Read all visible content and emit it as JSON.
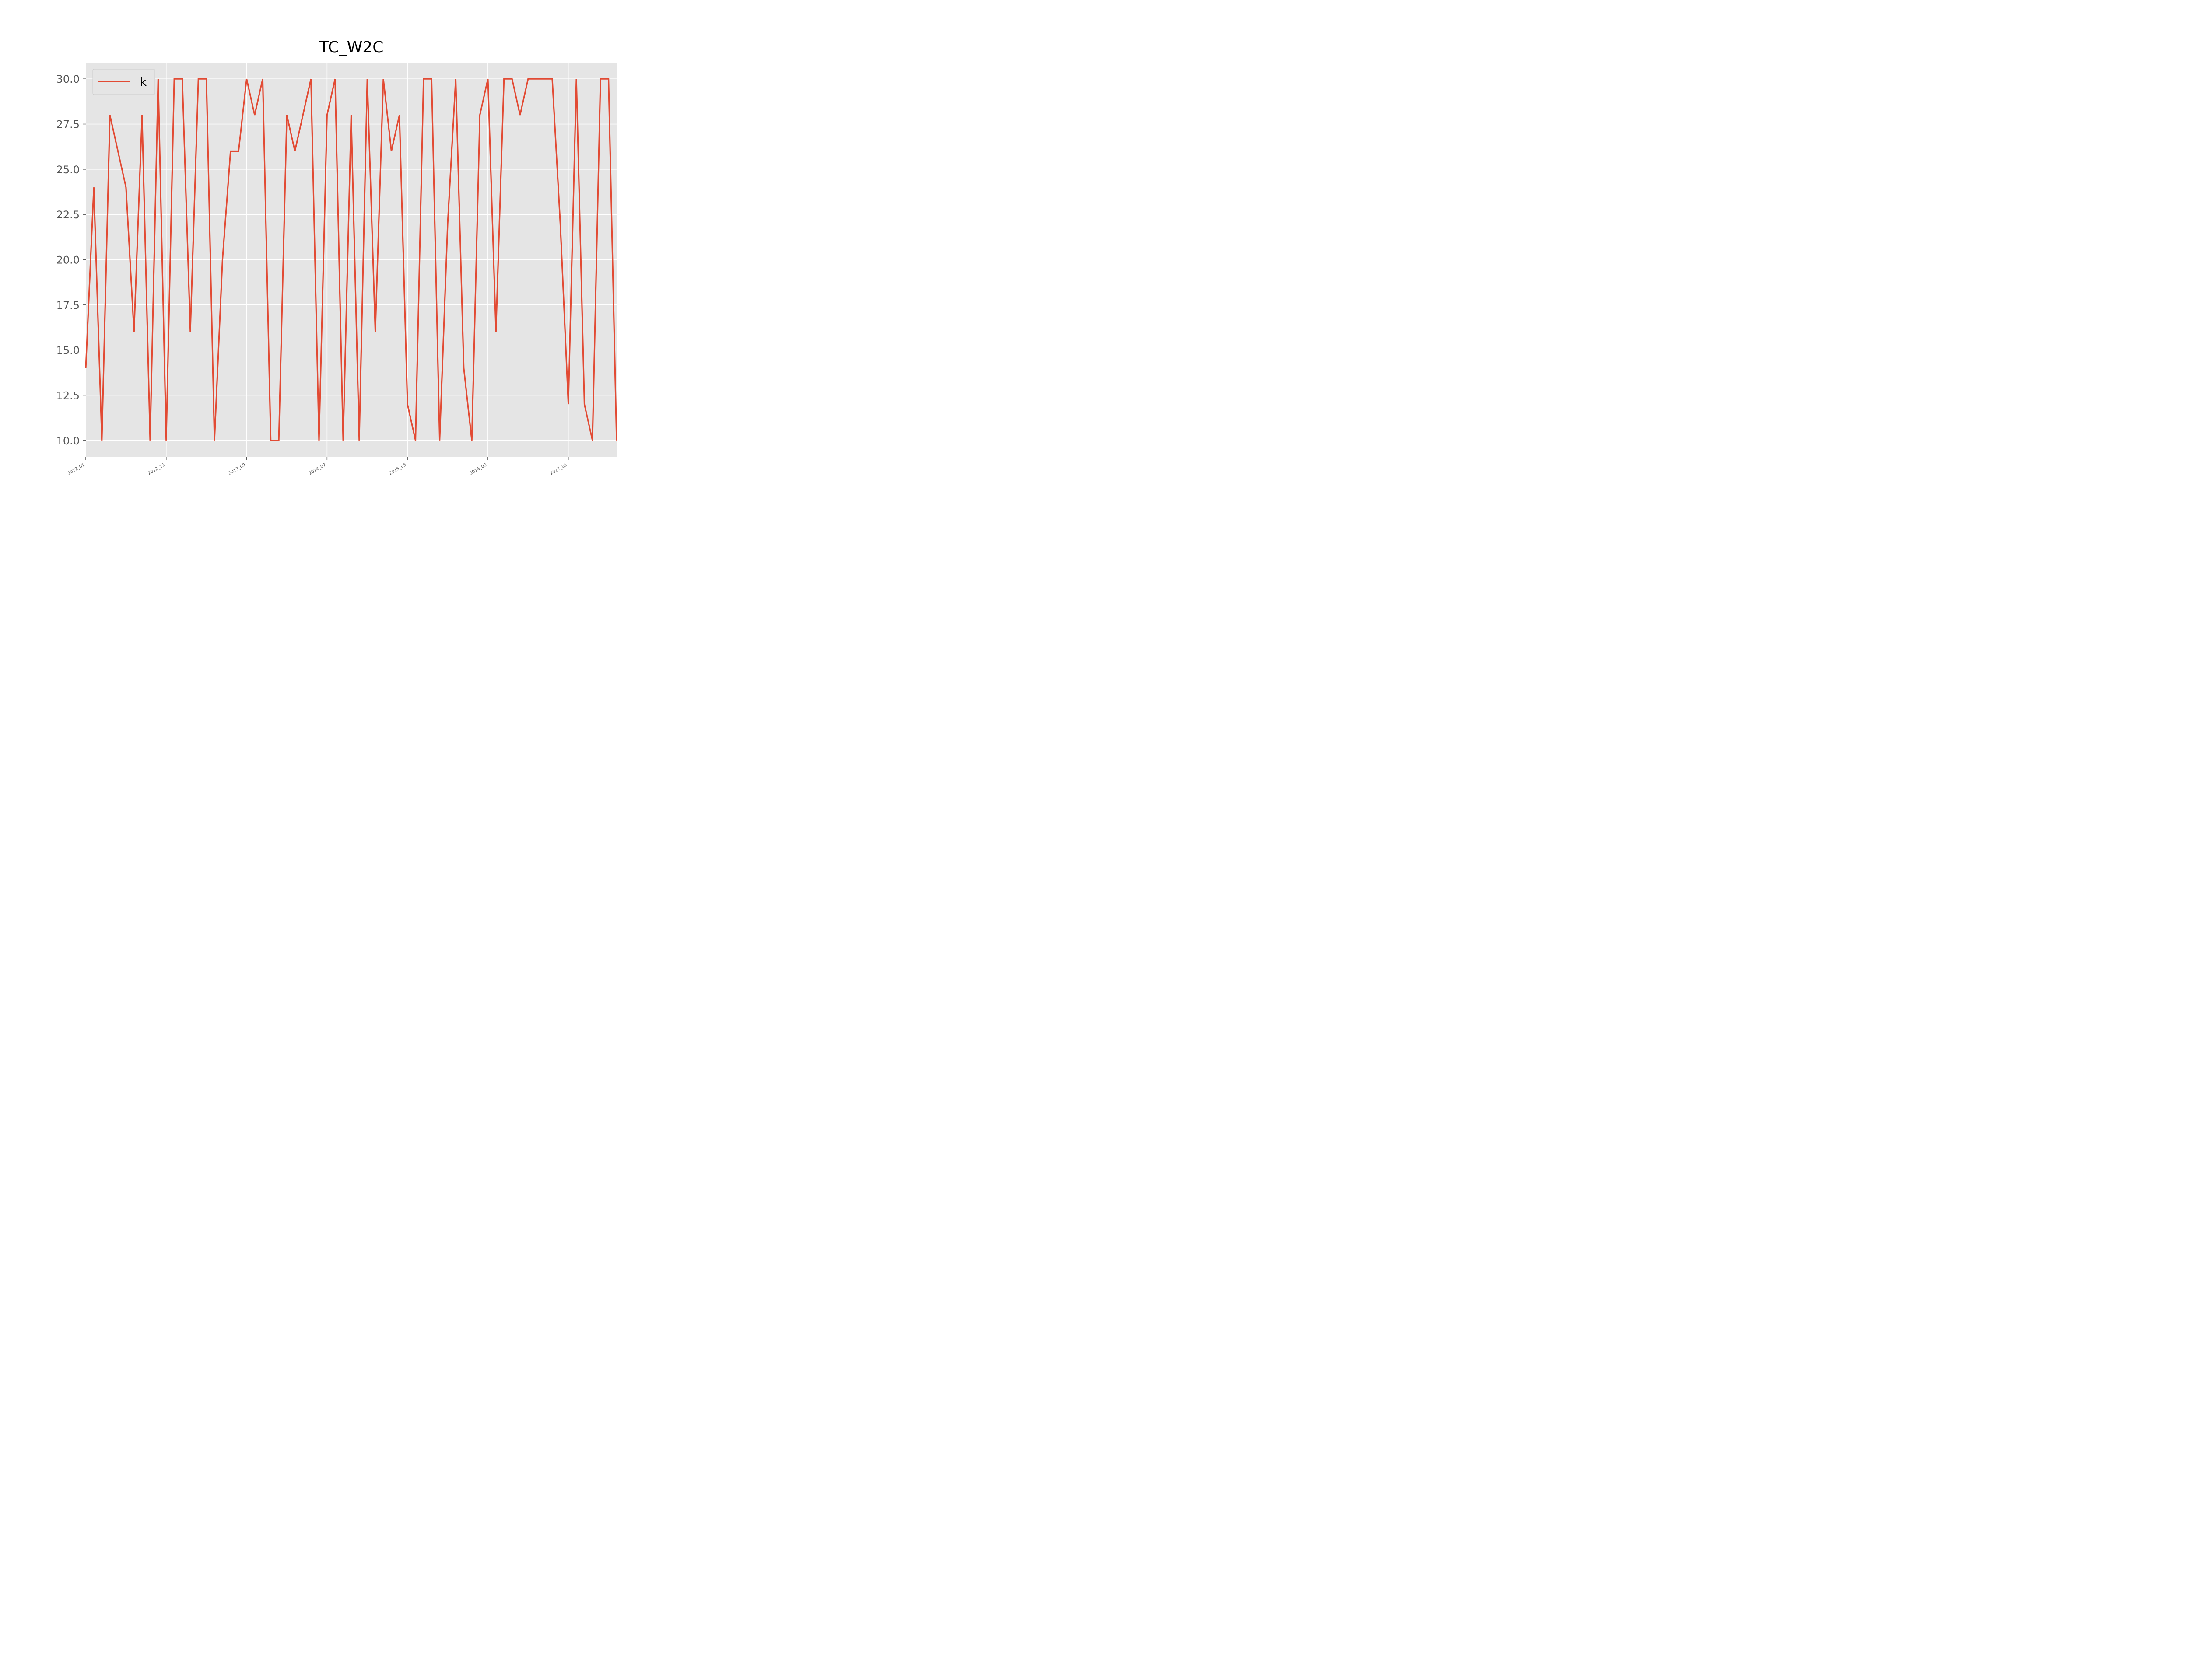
{
  "chart_data": {
    "type": "line",
    "title": "TC_W2C",
    "xlabel": "",
    "ylabel": "",
    "ylim": [
      9.1,
      30.9
    ],
    "yticks": [
      "10.0",
      "12.5",
      "15.0",
      "17.5",
      "20.0",
      "22.5",
      "25.0",
      "27.5",
      "30.0"
    ],
    "xticks": [
      "2012_01",
      "2012_11",
      "2013_09",
      "2014_07",
      "2015_05",
      "2016_03",
      "2017_01"
    ],
    "x_unit": "months since 2012_01 (one point per month)",
    "grid": true,
    "legend": {
      "placement": "top-left",
      "entries": [
        "k"
      ]
    },
    "colors": {
      "series": "#e24a33",
      "plot_bg": "#e5e5e5",
      "grid": "#ffffff",
      "tick": "#555555"
    },
    "series": [
      {
        "name": "k",
        "values": [
          14,
          24,
          10,
          28,
          26,
          24,
          16,
          28,
          10,
          30,
          10,
          30,
          30,
          16,
          30,
          30,
          10,
          20,
          26,
          26,
          30,
          28,
          30,
          10,
          10,
          28,
          26,
          28,
          30,
          10,
          28,
          30,
          10,
          28,
          10,
          30,
          16,
          30,
          26,
          28,
          12,
          10,
          30,
          30,
          10,
          22,
          30,
          14,
          10,
          28,
          30,
          16,
          30,
          30,
          28,
          30,
          30,
          30,
          30,
          22,
          12,
          30,
          12,
          10,
          30,
          30,
          10
        ]
      }
    ]
  }
}
